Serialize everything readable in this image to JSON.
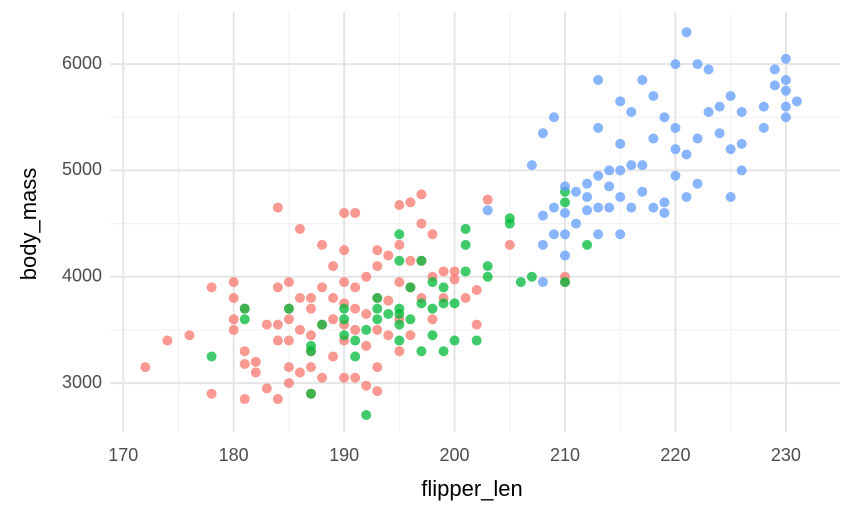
{
  "chart_data": {
    "type": "scatter",
    "x_label": "flipper_len",
    "y_label": "body_mass",
    "xlim": [
      168.8,
      234.9
    ],
    "ylim": [
      2540,
      6490
    ],
    "xticks": [
      170,
      180,
      190,
      200,
      210,
      220,
      230
    ],
    "yticks": [
      3000,
      4000,
      5000,
      6000
    ],
    "x_minor_grid": [
      175,
      185,
      195,
      205,
      215,
      225
    ],
    "y_minor_grid": [
      3500,
      4500,
      5500
    ],
    "grid": true,
    "series": [
      {
        "color": "#F8766D",
        "x": [
          172,
          174,
          176,
          178,
          178,
          180,
          180,
          180,
          180,
          181,
          181,
          181,
          181,
          182,
          182,
          183,
          183,
          184,
          184,
          184,
          184,
          184,
          185,
          185,
          185,
          185,
          185,
          185,
          186,
          186,
          186,
          186,
          187,
          187,
          187,
          187,
          187,
          187,
          188,
          188,
          188,
          188,
          189,
          189,
          189,
          189,
          190,
          190,
          190,
          190,
          190,
          190,
          190,
          191,
          191,
          191,
          191,
          191,
          192,
          192,
          192,
          192,
          193,
          193,
          193,
          193,
          193,
          193,
          194,
          194,
          194,
          195,
          195,
          195,
          195,
          195,
          196,
          196,
          196,
          196,
          197,
          197,
          197,
          197,
          198,
          198,
          198,
          199,
          199,
          200,
          200,
          201,
          202,
          202,
          203,
          205,
          210,
          210
        ],
        "values": [
          3150,
          3400,
          3450,
          3900,
          2900,
          3950,
          3600,
          3500,
          3800,
          3700,
          3300,
          3180,
          2850,
          3200,
          3100,
          3550,
          2950,
          4650,
          3900,
          3550,
          3400,
          2850,
          3950,
          3700,
          3600,
          3400,
          3150,
          3000,
          4450,
          3800,
          3500,
          3100,
          3800,
          3700,
          3450,
          3300,
          3150,
          2900,
          4300,
          3900,
          3550,
          3050,
          4100,
          3800,
          3600,
          3250,
          4600,
          4250,
          3950,
          3750,
          3550,
          3400,
          3050,
          4600,
          3900,
          3700,
          3500,
          3050,
          4000,
          3650,
          3350,
          2975,
          4250,
          4100,
          3800,
          3500,
          3150,
          2925,
          4200,
          3775,
          3450,
          4675,
          4300,
          3950,
          3600,
          3300,
          4700,
          4150,
          3900,
          3450,
          4775,
          4500,
          4150,
          3800,
          4400,
          4000,
          3600,
          3800,
          4050,
          4050,
          3975,
          3800,
          3875,
          3550,
          4725,
          4300,
          4000,
          3950
        ]
      },
      {
        "color": "#00BA38",
        "x": [
          178,
          181,
          181,
          185,
          187,
          187,
          187,
          188,
          190,
          190,
          190,
          191,
          191,
          192,
          192,
          193,
          193,
          193,
          194,
          195,
          195,
          195,
          195,
          195,
          195,
          196,
          196,
          197,
          197,
          197,
          198,
          198,
          198,
          199,
          199,
          200,
          200,
          201,
          201,
          201,
          202,
          203,
          203,
          205,
          205,
          206,
          207,
          210,
          210,
          210,
          212,
          199
        ],
        "values": [
          3250,
          3700,
          3600,
          3700,
          3350,
          3300,
          2900,
          3550,
          3600,
          3450,
          3700,
          3250,
          3400,
          2700,
          3500,
          3800,
          3700,
          3600,
          3650,
          3700,
          4400,
          4150,
          3650,
          3550,
          3400,
          3900,
          3600,
          3750,
          4150,
          3300,
          3700,
          3950,
          3450,
          3750,
          3300,
          3400,
          3750,
          4450,
          4300,
          4050,
          3400,
          4100,
          4000,
          4550,
          4500,
          3950,
          4000,
          4800,
          4700,
          3950,
          4300,
          3900
        ]
      },
      {
        "color": "#619CFF",
        "x": [
          203,
          207,
          208,
          208,
          208,
          208,
          209,
          209,
          209,
          210,
          210,
          210,
          210,
          211,
          211,
          212,
          212,
          212,
          213,
          213,
          213,
          213,
          214,
          214,
          214,
          215,
          215,
          215,
          215,
          215,
          216,
          216,
          216,
          217,
          217,
          218,
          218,
          218,
          219,
          219,
          220,
          220,
          220,
          220,
          221,
          221,
          221,
          222,
          222,
          222,
          223,
          223,
          224,
          224,
          225,
          225,
          225,
          226,
          226,
          228,
          228,
          229,
          229,
          230,
          230,
          230,
          230,
          230,
          231,
          219,
          217,
          213,
          226
        ],
        "values": [
          4625,
          5050,
          4575,
          4300,
          3950,
          5350,
          4650,
          4400,
          5500,
          4850,
          4600,
          4400,
          4200,
          4500,
          4800,
          4625,
          4750,
          4875,
          4400,
          4650,
          5400,
          5850,
          4650,
          4850,
          5000,
          4400,
          4750,
          5000,
          5250,
          5650,
          4650,
          5050,
          5550,
          4800,
          5850,
          4650,
          5700,
          5300,
          5500,
          4700,
          4950,
          5200,
          5400,
          6000,
          6300,
          4750,
          5150,
          4875,
          5300,
          6000,
          5550,
          5950,
          5350,
          5600,
          4750,
          5200,
          5700,
          5000,
          5550,
          5600,
          5400,
          5800,
          5950,
          5750,
          5850,
          6050,
          5500,
          5600,
          5650,
          4600,
          5050,
          4950,
          5250
        ]
      }
    ]
  }
}
